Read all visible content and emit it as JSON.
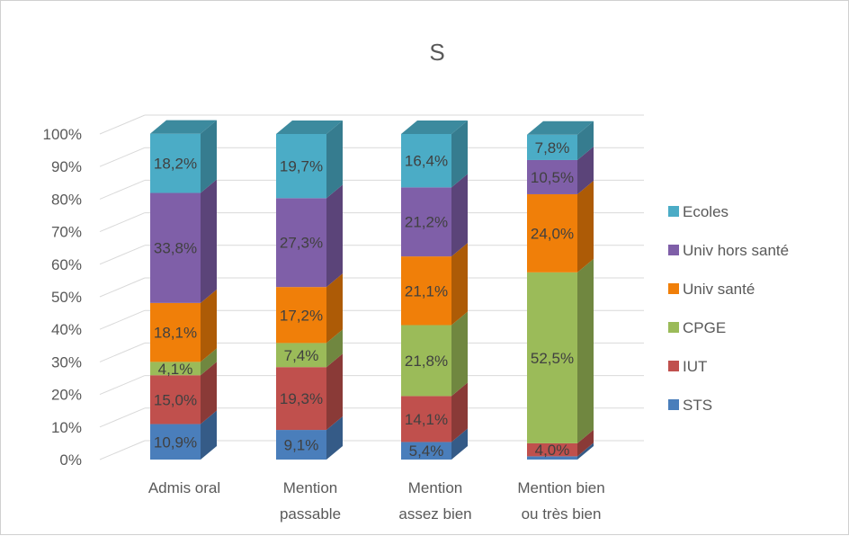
{
  "chart_data": {
    "type": "bar",
    "stacked": "percent",
    "title": "S",
    "categories": [
      [
        "Admis oral"
      ],
      [
        "Mention",
        "passable"
      ],
      [
        "Mention",
        "assez bien"
      ],
      [
        "Mention bien",
        "ou très bien"
      ]
    ],
    "ylim": [
      0,
      100
    ],
    "yticks": [
      "0%",
      "10%",
      "20%",
      "30%",
      "40%",
      "50%",
      "60%",
      "70%",
      "80%",
      "90%",
      "100%"
    ],
    "grid": true,
    "legend_position": "right",
    "series": [
      {
        "name": "STS",
        "color": "#4a7ebb",
        "values": [
          10.9,
          9.1,
          5.4,
          1.0
        ],
        "labels": [
          "10,9%",
          "9,1%",
          "5,4%",
          ""
        ]
      },
      {
        "name": "IUT",
        "color": "#c0504d",
        "values": [
          15.0,
          19.3,
          14.1,
          4.0
        ],
        "labels": [
          "15,0%",
          "19,3%",
          "14,1%",
          "4,0%"
        ]
      },
      {
        "name": "CPGE",
        "color": "#9bbb59",
        "values": [
          4.1,
          7.4,
          21.8,
          52.5
        ],
        "labels": [
          "4,1%",
          "7,4%",
          "21,8%",
          "52,5%"
        ]
      },
      {
        "name": "Univ santé",
        "color": "#f07f09",
        "values": [
          18.1,
          17.2,
          21.1,
          24.0
        ],
        "labels": [
          "18,1%",
          "17,2%",
          "21,1%",
          "24,0%"
        ]
      },
      {
        "name": "Univ hors santé",
        "color": "#7f5fa8",
        "values": [
          33.8,
          27.3,
          21.2,
          10.5
        ],
        "labels": [
          "33,8%",
          "27,3%",
          "21,2%",
          "10,5%"
        ]
      },
      {
        "name": "Ecoles",
        "color": "#4bacc6",
        "values": [
          18.2,
          19.7,
          16.4,
          7.8
        ],
        "labels": [
          "18,2%",
          "19,7%",
          "16,4%",
          "7,8%"
        ]
      }
    ]
  }
}
